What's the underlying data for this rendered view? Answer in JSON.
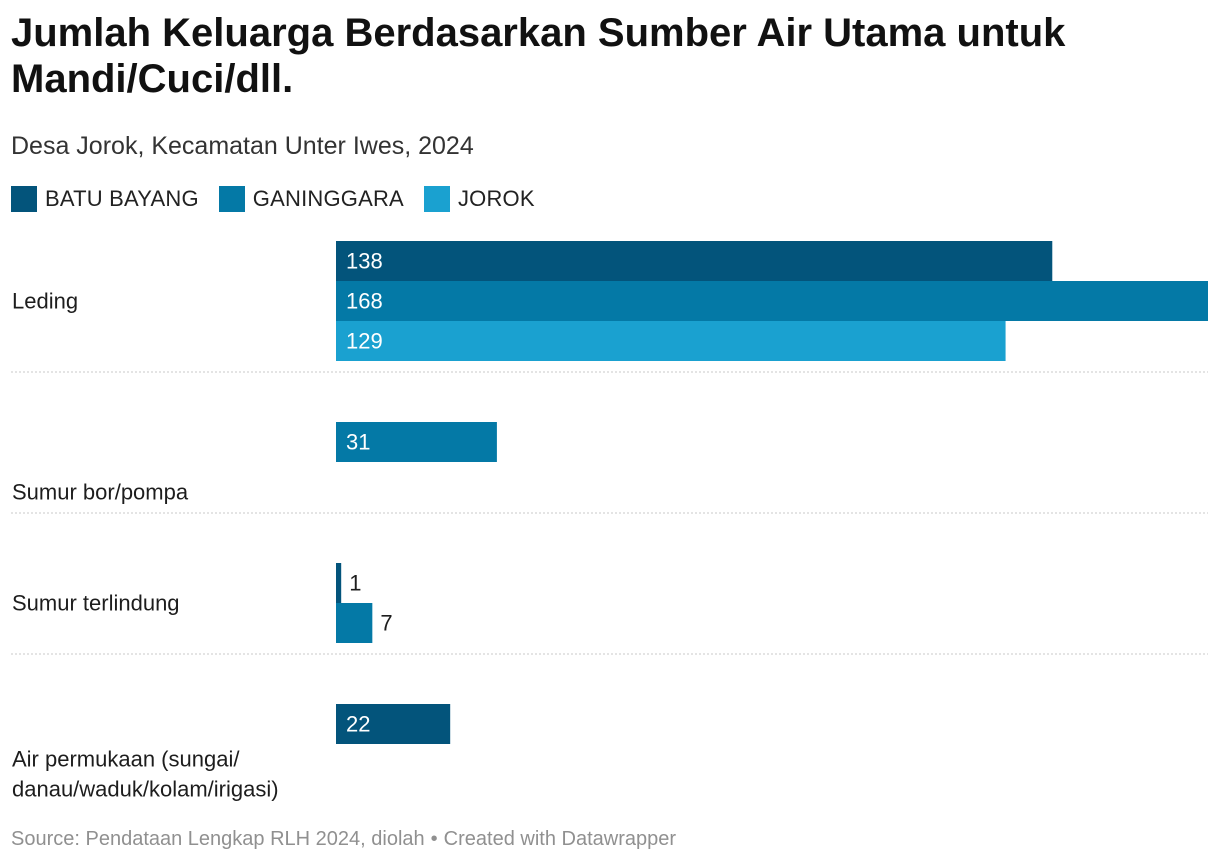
{
  "title": "Jumlah Keluarga Berdasarkan Sumber Air Utama untuk Mandi/Cuci/dll.",
  "subtitle": "Desa Jorok, Kecamatan Unter Iwes, 2024",
  "footer": {
    "source": "Source: Pendataan Lengkap RLH 2024, diolah",
    "separator": "•",
    "credit": "Created with Datawrapper"
  },
  "colors": {
    "batu_bayang": "#03547b",
    "ganinggara": "#0479a6",
    "jorok": "#1aa1d0",
    "grid": "#c8c8c8"
  },
  "chart_data": {
    "type": "bar",
    "orientation": "horizontal",
    "grouped": true,
    "title": "Jumlah Keluarga Berdasarkan Sumber Air Utama untuk Mandi/Cuci/dll.",
    "subtitle": "Desa Jorok, Kecamatan Unter Iwes, 2024",
    "xlabel": "",
    "ylabel": "",
    "xlim": [
      0,
      168
    ],
    "legend_position": "top-left",
    "categories": [
      "Leding",
      "Sumur bor/pompa",
      "Sumur terlindung",
      "Air permukaan (sungai/ danau/waduk/kolam/irigasi)"
    ],
    "category_lines": [
      [
        "Leding"
      ],
      [
        "Sumur bor/pompa"
      ],
      [
        "Sumur terlindung"
      ],
      [
        "Air permukaan (sungai/",
        "danau/waduk/kolam/irigasi)"
      ]
    ],
    "series": [
      {
        "name": "BATU BAYANG",
        "color": "#03547b",
        "values": [
          138,
          null,
          1,
          22
        ]
      },
      {
        "name": "GANINGGARA",
        "color": "#0479a6",
        "values": [
          168,
          31,
          7,
          null
        ]
      },
      {
        "name": "JOROK",
        "color": "#1aa1d0",
        "values": [
          129,
          null,
          null,
          null
        ]
      }
    ]
  }
}
